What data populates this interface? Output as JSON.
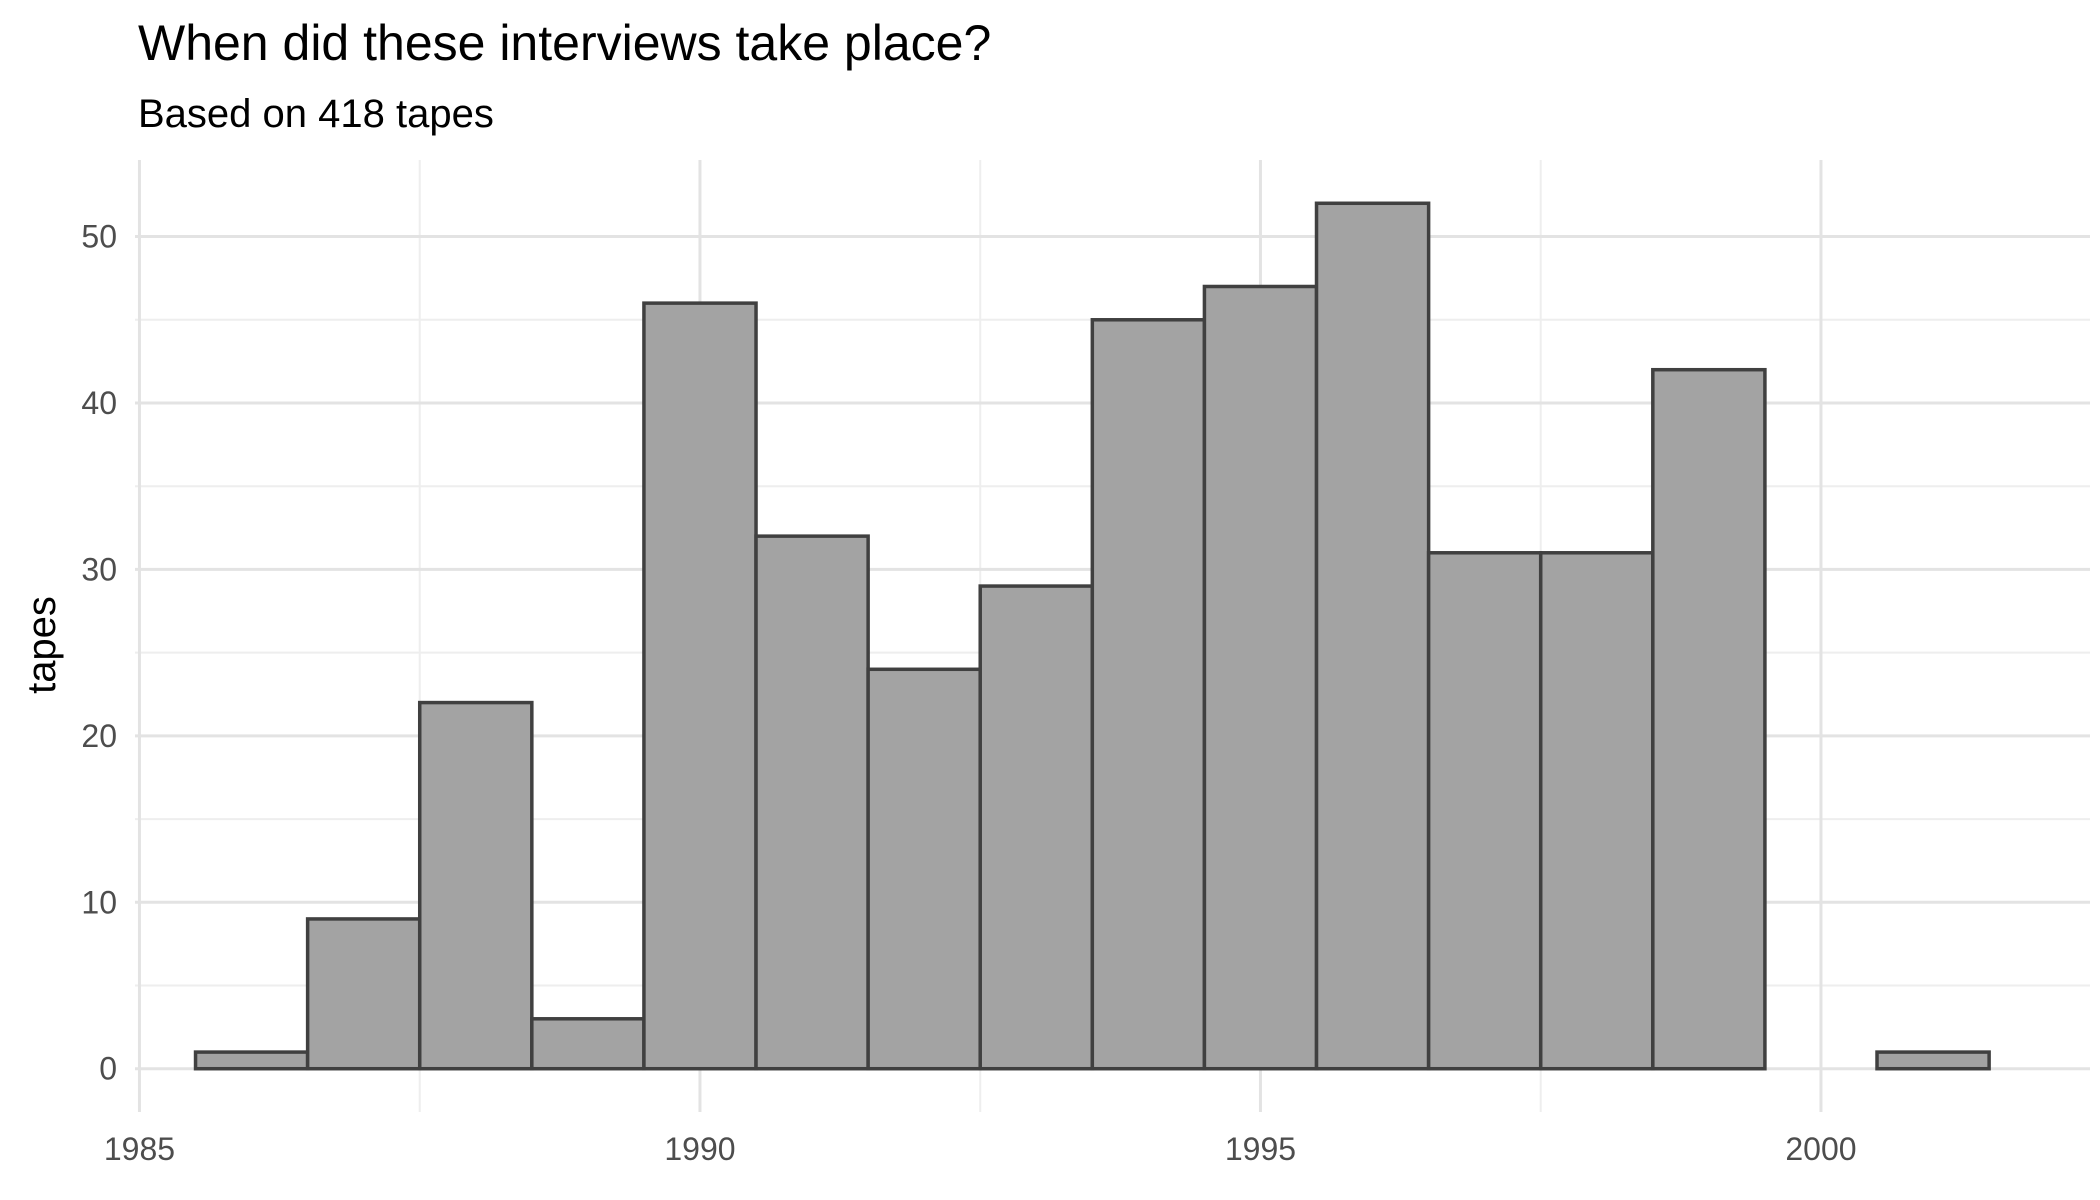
{
  "chart_data": {
    "type": "bar",
    "title": "When did these interviews take place?",
    "subtitle": "Based on 418 tapes",
    "xlabel": "",
    "ylabel": "tapes",
    "bin_width": 1,
    "bins": [
      {
        "x": 1986,
        "value": 1
      },
      {
        "x": 1987,
        "value": 9
      },
      {
        "x": 1988,
        "value": 22
      },
      {
        "x": 1989,
        "value": 3
      },
      {
        "x": 1990,
        "value": 46
      },
      {
        "x": 1991,
        "value": 32
      },
      {
        "x": 1992,
        "value": 24
      },
      {
        "x": 1993,
        "value": 29
      },
      {
        "x": 1994,
        "value": 45
      },
      {
        "x": 1995,
        "value": 47
      },
      {
        "x": 1996,
        "value": 52
      },
      {
        "x": 1997,
        "value": 31
      },
      {
        "x": 1998,
        "value": 31
      },
      {
        "x": 1999,
        "value": 42
      },
      {
        "x": 2000,
        "value": 0
      },
      {
        "x": 2001,
        "value": 1
      }
    ],
    "xlim": [
      1984.96,
      2002.4
    ],
    "ylim": [
      -2.6,
      54.6
    ],
    "x_ticks": [
      1985,
      1990,
      1995,
      2000
    ],
    "x_tick_labels": [
      "1985",
      "1990",
      "1995",
      "2000"
    ],
    "x_minor_ticks": [
      1987.5,
      1992.5,
      1997.5
    ],
    "y_ticks": [
      0,
      10,
      20,
      30,
      40,
      50
    ],
    "y_tick_labels": [
      "0",
      "10",
      "20",
      "30",
      "40",
      "50"
    ],
    "y_minor_ticks": [
      5,
      15,
      25,
      35,
      45
    ],
    "grid": true,
    "legend": "none",
    "colors": {
      "bar_fill": "#a3a3a3",
      "bar_stroke": "#404040",
      "grid_major": "#e3e3e3",
      "grid_minor": "#eeeeee",
      "tick_text": "#4d4d4d"
    }
  }
}
